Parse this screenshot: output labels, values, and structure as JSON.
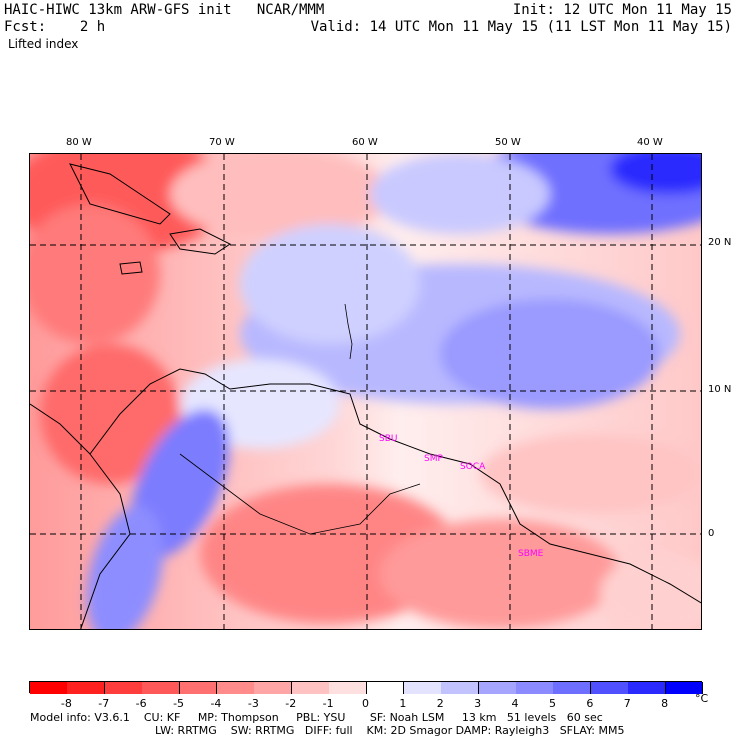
{
  "header": {
    "title": "HAIC-HIWC 13km ARW-GFS init   NCAR/MMM",
    "init": "Init: 12 UTC Mon 11 May 15",
    "fcst": "Fcst:    2 h",
    "valid": "Valid: 14 UTC Mon 11 May 15 (11 LST Mon 11 May 15)",
    "field": "Lifted index"
  },
  "map": {
    "lon_labels": [
      "80 W",
      "70 W",
      "60 W",
      "50 W",
      "40 W"
    ],
    "lat_labels": [
      "20 N",
      "10 N",
      "0"
    ],
    "station_labels": [
      "SBU",
      "SMP",
      "SOCA",
      "SBME"
    ],
    "colors": {
      "negative_max": "#ff0000",
      "neutral": "#ffffff",
      "positive_max": "#0000ff",
      "station_label": "#ff00ff"
    }
  },
  "colorbar": {
    "ticks": [
      "-8",
      "-7",
      "-6",
      "-5",
      "-4",
      "-3",
      "-2",
      "-1",
      "0",
      "1",
      "2",
      "3",
      "4",
      "5",
      "6",
      "7",
      "8"
    ],
    "unit": "°C",
    "colors": [
      "#ff0000",
      "#ff2020",
      "#ff3d3d",
      "#ff5858",
      "#ff7171",
      "#ff8b8b",
      "#ffa5a5",
      "#ffc2c2",
      "#ffe0e0",
      "#ffffff",
      "#e3e3ff",
      "#c2c2ff",
      "#a5a5ff",
      "#8b8bff",
      "#6f6fff",
      "#5050ff",
      "#2a2aff",
      "#0000ff"
    ]
  },
  "footer": {
    "line1": "Model info: V3.6.1    CU: KF     MP: Thompson     PBL: YSU       SF: Noah LSM     13 km   51 levels   60 sec",
    "line2": "LW: RRTMG    SW: RRTMG   DIFF: full    KM: 2D Smagor DAMP: Rayleigh3   SFLAY: MM5"
  }
}
